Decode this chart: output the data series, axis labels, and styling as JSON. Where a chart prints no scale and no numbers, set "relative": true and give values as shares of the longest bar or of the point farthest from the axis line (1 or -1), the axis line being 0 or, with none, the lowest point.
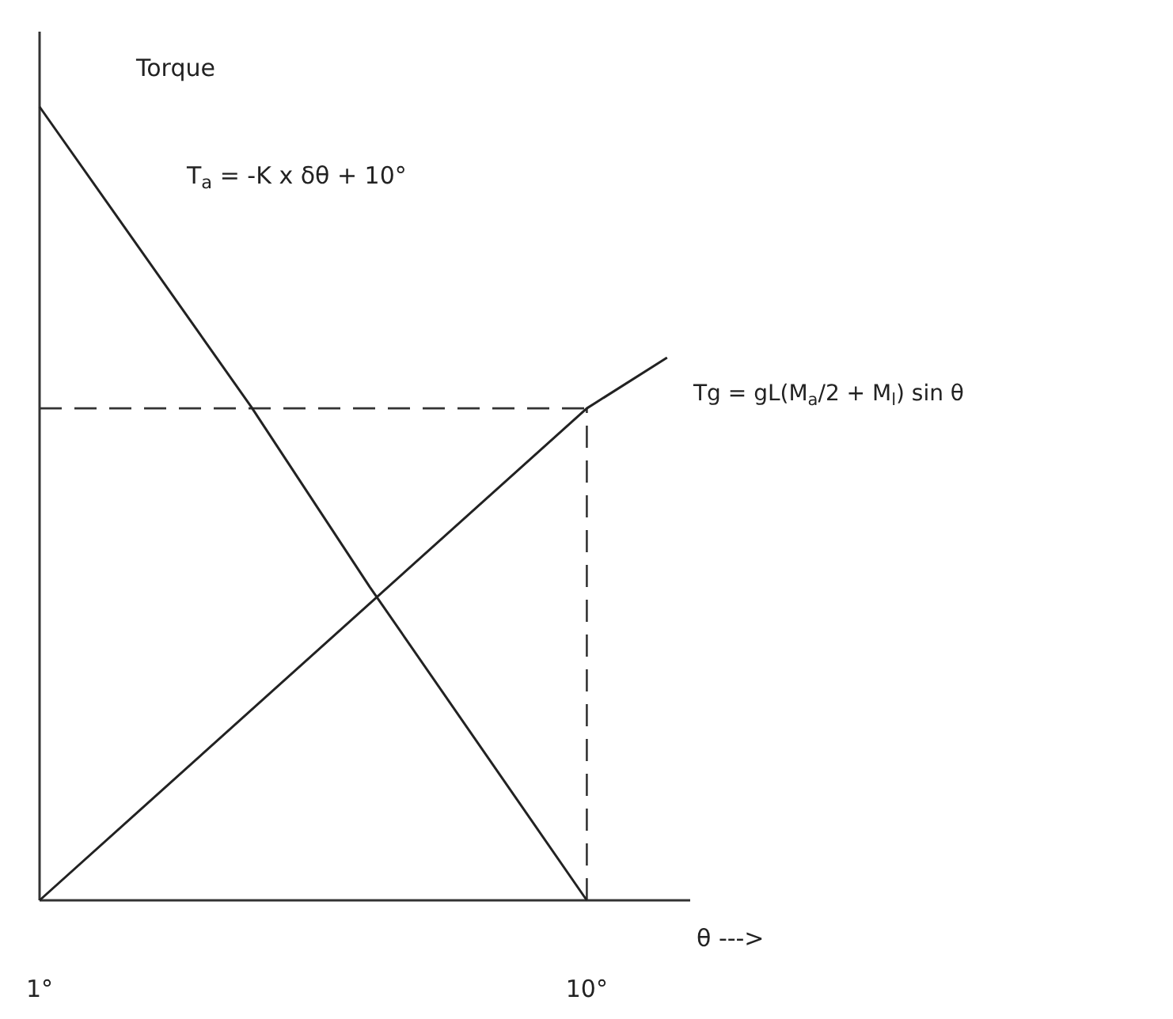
{
  "chart_data": {
    "type": "line",
    "relative": true,
    "ylabel": "Torque",
    "xlabel": "θ --->",
    "xlim": [
      1,
      11.7
    ],
    "xticks": [
      {
        "value": 1,
        "label": "1°"
      },
      {
        "value": 10,
        "label": "10°"
      }
    ],
    "series": [
      {
        "color": "#222222",
        "x": [
          1,
          4.48,
          6.43,
          10
        ],
        "values": [
          1,
          0.622,
          0.395,
          0
        ]
      },
      {
        "color": "#222222",
        "x": [
          1,
          10,
          11.32
        ],
        "values": [
          0,
          0.62,
          0.684
        ]
      }
    ],
    "ref_lines": [
      {
        "axis": "y",
        "value": 0.62,
        "line_style": "dashed"
      },
      {
        "axis": "x",
        "value": 10,
        "line_style": "dashed"
      }
    ],
    "annotations": [
      "T$_{a}$ = -K x δθ + 10°",
      "Tg = gL(M$_{a}$/2 + M$_{l}$) sin θ"
    ],
    "grid": false,
    "marker": "none",
    "line_style": "solid"
  }
}
